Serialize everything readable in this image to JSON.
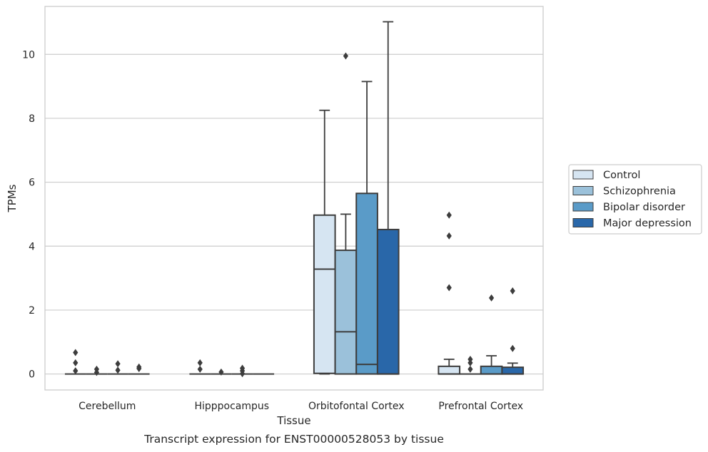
{
  "chart_data": {
    "type": "box",
    "title": "",
    "caption": "Transcript expression for ENST00000528053 by tissue",
    "xlabel": "Tissue",
    "ylabel": "TPMs",
    "ylim": [
      -0.5,
      11.5
    ],
    "yticks": [
      0,
      2,
      4,
      6,
      8,
      10
    ],
    "grid": "horizontal",
    "legend_position": "right",
    "categories": [
      "Cerebellum",
      "Hipppocampus",
      "Orbitofontal Cortex",
      "Prefrontal Cortex"
    ],
    "series": [
      {
        "name": "Control",
        "color": "#d6e5f2",
        "boxes": [
          {
            "q1": 0,
            "median": 0,
            "q3": 0,
            "whisker_low": 0,
            "whisker_high": 0,
            "outliers": [
              0.67,
              0.35,
              0.1
            ]
          },
          {
            "q1": 0,
            "median": 0,
            "q3": 0,
            "whisker_low": 0,
            "whisker_high": 0,
            "outliers": [
              0.35,
              0.15
            ]
          },
          {
            "q1": 0.02,
            "median": 3.28,
            "q3": 4.97,
            "whisker_low": 0,
            "whisker_high": 8.25,
            "outliers": []
          },
          {
            "q1": 0,
            "median": 0,
            "q3": 0.24,
            "whisker_low": 0,
            "whisker_high": 0.46,
            "outliers": [
              4.97,
              4.32,
              2.7
            ]
          }
        ]
      },
      {
        "name": "Schizophrenia",
        "color": "#9bc1da",
        "boxes": [
          {
            "q1": 0,
            "median": 0,
            "q3": 0,
            "whisker_low": 0,
            "whisker_high": 0,
            "outliers": [
              0.15,
              0.05
            ]
          },
          {
            "q1": 0,
            "median": 0,
            "q3": 0,
            "whisker_low": 0,
            "whisker_high": 0,
            "outliers": [
              0.06
            ]
          },
          {
            "q1": 0,
            "median": 1.32,
            "q3": 3.87,
            "whisker_low": 0,
            "whisker_high": 5.0,
            "outliers": [
              9.95
            ]
          },
          {
            "q1": 0,
            "median": 0,
            "q3": 0,
            "whisker_low": 0,
            "whisker_high": 0,
            "outliers": [
              0.46,
              0.35,
              0.15
            ]
          }
        ]
      },
      {
        "name": "Bipolar disorder",
        "color": "#5a9bc8",
        "boxes": [
          {
            "q1": 0,
            "median": 0,
            "q3": 0,
            "whisker_low": 0,
            "whisker_high": 0,
            "outliers": [
              0.32,
              0.12
            ]
          },
          {
            "q1": 0,
            "median": 0,
            "q3": 0,
            "whisker_low": 0,
            "whisker_high": 0,
            "outliers": [
              0.18,
              0.1,
              0.01
            ]
          },
          {
            "q1": 0,
            "median": 0.3,
            "q3": 5.65,
            "whisker_low": 0,
            "whisker_high": 9.15,
            "outliers": []
          },
          {
            "q1": 0,
            "median": 0,
            "q3": 0.24,
            "whisker_low": 0,
            "whisker_high": 0.57,
            "outliers": [
              2.38
            ]
          }
        ]
      },
      {
        "name": "Major depression",
        "color": "#2967a9",
        "boxes": [
          {
            "q1": 0,
            "median": 0,
            "q3": 0,
            "whisker_low": 0,
            "whisker_high": 0,
            "outliers": [
              0.22,
              0.17
            ]
          },
          {
            "q1": 0,
            "median": 0,
            "q3": 0,
            "whisker_low": 0,
            "whisker_high": 0,
            "outliers": []
          },
          {
            "q1": 0,
            "median": 0,
            "q3": 4.52,
            "whisker_low": 0,
            "whisker_high": 11.02,
            "outliers": []
          },
          {
            "q1": 0,
            "median": 0,
            "q3": 0.21,
            "whisker_low": 0,
            "whisker_high": 0.34,
            "outliers": [
              2.6,
              0.8
            ]
          }
        ]
      }
    ]
  }
}
